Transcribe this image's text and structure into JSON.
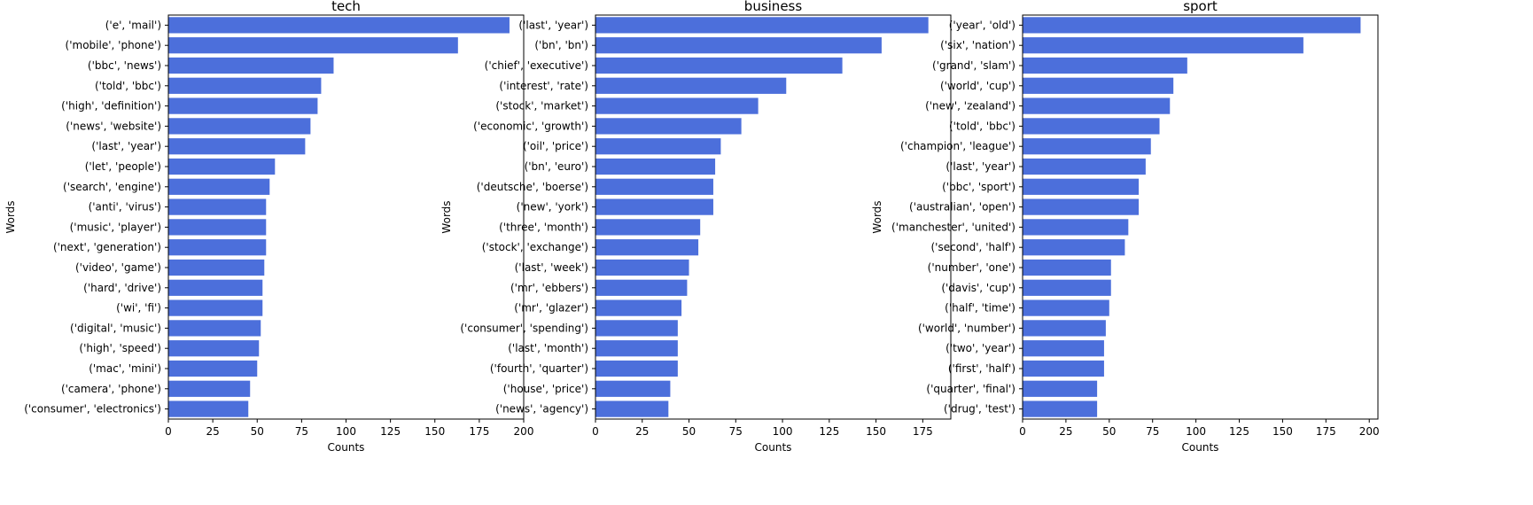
{
  "chart_data": [
    {
      "type": "bar",
      "orientation": "horizontal",
      "title": "tech",
      "xlabel": "Counts",
      "ylabel": "Words",
      "xlim": [
        0,
        200
      ],
      "xticks": [
        0,
        25,
        50,
        75,
        100,
        125,
        150,
        175,
        200
      ],
      "bar_color": "#4c6fdb",
      "categories": [
        "('e', 'mail')",
        "('mobile', 'phone')",
        "('bbc', 'news')",
        "('told', 'bbc')",
        "('high', 'definition')",
        "('news', 'website')",
        "('last', 'year')",
        "('let', 'people')",
        "('search', 'engine')",
        "('anti', 'virus')",
        "('music', 'player')",
        "('next', 'generation')",
        "('video', 'game')",
        "('hard', 'drive')",
        "('wi', 'fi')",
        "('digital', 'music')",
        "('high', 'speed')",
        "('mac', 'mini')",
        "('camera', 'phone')",
        "('consumer', 'electronics')"
      ],
      "values": [
        192,
        163,
        93,
        86,
        84,
        80,
        77,
        60,
        57,
        55,
        55,
        55,
        54,
        53,
        53,
        52,
        51,
        50,
        46,
        45
      ]
    },
    {
      "type": "bar",
      "orientation": "horizontal",
      "title": "business",
      "xlabel": "Counts",
      "ylabel": "Words",
      "xlim": [
        0,
        190
      ],
      "xticks": [
        0,
        25,
        50,
        75,
        100,
        125,
        150,
        175
      ],
      "bar_color": "#4c6fdb",
      "categories": [
        "('last', 'year')",
        "('bn', 'bn')",
        "('chief', 'executive')",
        "('interest', 'rate')",
        "('stock', 'market')",
        "('economic', 'growth')",
        "('oil', 'price')",
        "('bn', 'euro')",
        "('deutsche', 'boerse')",
        "('new', 'york')",
        "('three', 'month')",
        "('stock', 'exchange')",
        "('last', 'week')",
        "('mr', 'ebbers')",
        "('mr', 'glazer')",
        "('consumer', 'spending')",
        "('last', 'month')",
        "('fourth', 'quarter')",
        "('house', 'price')",
        "('news', 'agency')"
      ],
      "values": [
        178,
        153,
        132,
        102,
        87,
        78,
        67,
        64,
        63,
        63,
        56,
        55,
        50,
        49,
        46,
        44,
        44,
        44,
        40,
        39
      ]
    },
    {
      "type": "bar",
      "orientation": "horizontal",
      "title": "sport",
      "xlabel": "Counts",
      "ylabel": "Words",
      "xlim": [
        0,
        205
      ],
      "xticks": [
        0,
        25,
        50,
        75,
        100,
        125,
        150,
        175,
        200
      ],
      "bar_color": "#4c6fdb",
      "categories": [
        "('year', 'old')",
        "('six', 'nation')",
        "('grand', 'slam')",
        "('world', 'cup')",
        "('new', 'zealand')",
        "('told', 'bbc')",
        "('champion', 'league')",
        "('last', 'year')",
        "('bbc', 'sport')",
        "('australian', 'open')",
        "('manchester', 'united')",
        "('second', 'half')",
        "('number', 'one')",
        "('davis', 'cup')",
        "('half', 'time')",
        "('world', 'number')",
        "('two', 'year')",
        "('first', 'half')",
        "('quarter', 'final')",
        "('drug', 'test')"
      ],
      "values": [
        195,
        162,
        95,
        87,
        85,
        79,
        74,
        71,
        67,
        67,
        61,
        59,
        51,
        51,
        50,
        48,
        47,
        47,
        43,
        43
      ]
    }
  ]
}
